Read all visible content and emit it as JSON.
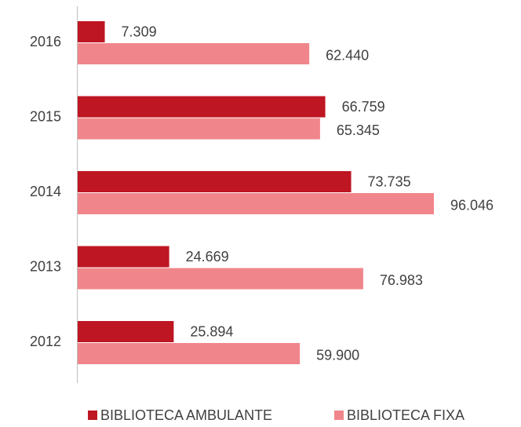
{
  "chart_data": {
    "type": "bar",
    "orientation": "horizontal",
    "categories": [
      "2016",
      "2015",
      "2014",
      "2013",
      "2012"
    ],
    "series": [
      {
        "name": "BIBLIOTECA AMBULANTE",
        "color": "#be1622",
        "values": [
          7309,
          66759,
          73735,
          24669,
          25894
        ],
        "value_labels": [
          "7.309",
          "66.759",
          "73.735",
          "24.669",
          "25.894"
        ]
      },
      {
        "name": "BIBLIOTECA FIXA",
        "color": "#f0868b",
        "values": [
          62440,
          65345,
          96046,
          76983,
          59900
        ],
        "value_labels": [
          "62.440",
          "65.345",
          "96.046",
          "76.983",
          "59.900"
        ]
      }
    ]
  }
}
